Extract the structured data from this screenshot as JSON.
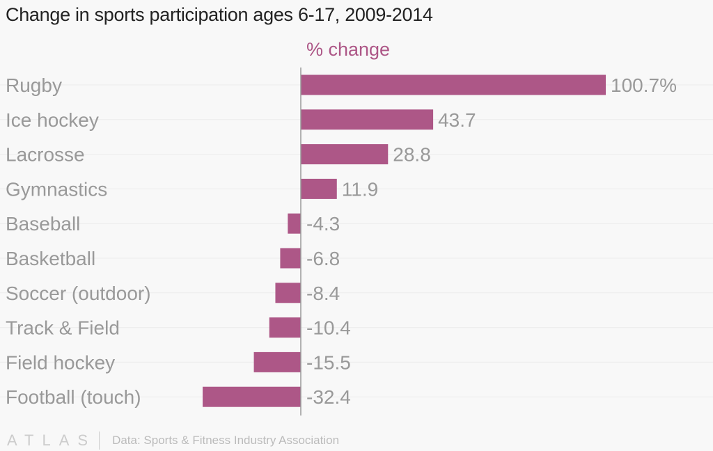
{
  "chart_data": {
    "type": "bar",
    "orientation": "horizontal",
    "title": "Change in sports participation ages 6-17, 2009-2014",
    "xlabel": "% change",
    "categories": [
      "Rugby",
      "Ice hockey",
      "Lacrosse",
      "Gymnastics",
      "Baseball",
      "Basketball",
      "Soccer (outdoor)",
      "Track & Field",
      "Field hockey",
      "Football (touch)"
    ],
    "values": [
      100.7,
      43.7,
      28.8,
      11.9,
      -4.3,
      -6.8,
      -8.4,
      -10.4,
      -15.5,
      -32.4
    ],
    "data_labels": [
      "100.7%",
      "43.7",
      "28.8",
      "11.9",
      "-4.3",
      "-6.8",
      "-8.4",
      "-10.4",
      "-15.5",
      "-32.4"
    ],
    "grid": true,
    "colors": {
      "bar": "#ad5787",
      "xlabel": "#ad5787"
    }
  },
  "footer": {
    "logo": "ATLAS",
    "source": "Data: Sports & Fitness Industry Association"
  }
}
